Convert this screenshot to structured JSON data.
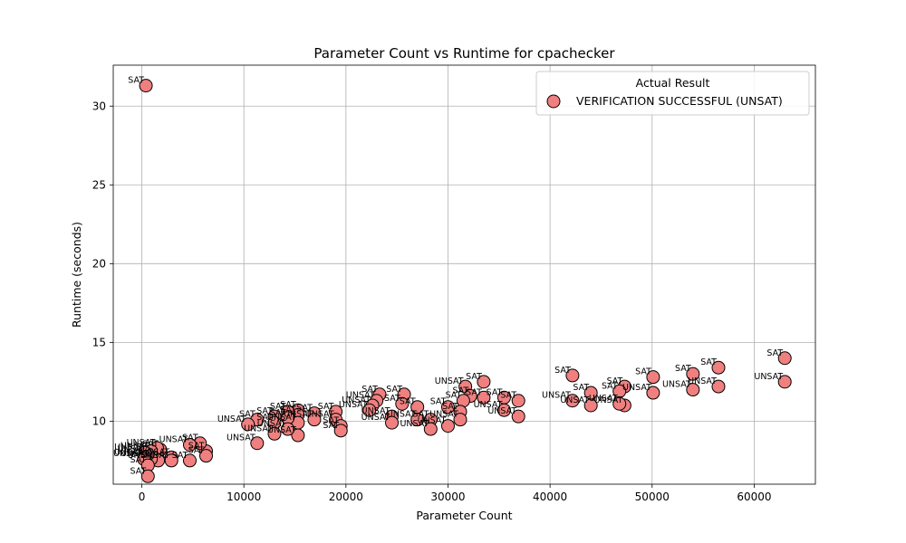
{
  "chart_data": {
    "type": "scatter",
    "title": "Parameter Count vs Runtime for cpachecker",
    "xlabel": "Parameter Count",
    "ylabel": "Runtime (seconds)",
    "xlim": [
      -2800,
      66000
    ],
    "ylim": [
      6.0,
      32.6
    ],
    "xticks": [
      0,
      10000,
      20000,
      30000,
      40000,
      50000,
      60000
    ],
    "yticks": [
      10,
      15,
      20,
      25,
      30
    ],
    "grid": true,
    "legend": {
      "title": "Actual Result",
      "placement": "top-right",
      "entries": [
        "VERIFICATION SUCCESSFUL (UNSAT)"
      ]
    },
    "marker_color": "#f08080",
    "series": [
      {
        "name": "VERIFICATION SUCCESSFUL (UNSAT)",
        "points": [
          {
            "x": 400,
            "y": 31.3,
            "label": "SAT"
          },
          {
            "x": 63000,
            "y": 14.0,
            "label": "SAT"
          },
          {
            "x": 63000,
            "y": 12.5,
            "label": "UNSAT"
          },
          {
            "x": 56500,
            "y": 13.4,
            "label": "SAT"
          },
          {
            "x": 56500,
            "y": 12.2,
            "label": "UNSAT"
          },
          {
            "x": 54000,
            "y": 13.0,
            "label": "SAT"
          },
          {
            "x": 54000,
            "y": 12.0,
            "label": "UNSAT"
          },
          {
            "x": 50100,
            "y": 12.8,
            "label": "SAT"
          },
          {
            "x": 50100,
            "y": 11.8,
            "label": "UNSAT"
          },
          {
            "x": 47300,
            "y": 12.2,
            "label": "SAT"
          },
          {
            "x": 46800,
            "y": 11.9,
            "label": "SAT"
          },
          {
            "x": 47300,
            "y": 11.0,
            "label": "UNSAT"
          },
          {
            "x": 46800,
            "y": 11.1,
            "label": "UNSAT"
          },
          {
            "x": 44000,
            "y": 11.8,
            "label": "SAT"
          },
          {
            "x": 44000,
            "y": 11.0,
            "label": "UNSAT"
          },
          {
            "x": 42200,
            "y": 12.9,
            "label": "SAT"
          },
          {
            "x": 42200,
            "y": 11.3,
            "label": "UNSAT"
          },
          {
            "x": 36900,
            "y": 11.3,
            "label": "SAT"
          },
          {
            "x": 36900,
            "y": 10.3,
            "label": "UNSAT"
          },
          {
            "x": 35500,
            "y": 11.5,
            "label": "SAT"
          },
          {
            "x": 35500,
            "y": 10.7,
            "label": "UNSAT"
          },
          {
            "x": 33500,
            "y": 12.5,
            "label": "SAT"
          },
          {
            "x": 33500,
            "y": 11.5,
            "label": "SAT"
          },
          {
            "x": 31700,
            "y": 12.2,
            "label": "UNSAT"
          },
          {
            "x": 32200,
            "y": 11.6,
            "label": "SAT"
          },
          {
            "x": 31500,
            "y": 11.3,
            "label": "SAT"
          },
          {
            "x": 31200,
            "y": 10.6,
            "label": "SAT"
          },
          {
            "x": 31200,
            "y": 10.1,
            "label": "UNSAT"
          },
          {
            "x": 30000,
            "y": 10.9,
            "label": "SAT"
          },
          {
            "x": 30000,
            "y": 9.7,
            "label": "UNSAT"
          },
          {
            "x": 28300,
            "y": 10.1,
            "label": "SAT"
          },
          {
            "x": 28300,
            "y": 9.5,
            "label": "UNSAT"
          },
          {
            "x": 27000,
            "y": 10.9,
            "label": "SAT"
          },
          {
            "x": 27000,
            "y": 10.1,
            "label": "UNSAT"
          },
          {
            "x": 25700,
            "y": 11.7,
            "label": "SAT"
          },
          {
            "x": 25500,
            "y": 11.1,
            "label": "SAT"
          },
          {
            "x": 24500,
            "y": 10.3,
            "label": "UNSAT"
          },
          {
            "x": 24500,
            "y": 9.9,
            "label": "UNSAT"
          },
          {
            "x": 23300,
            "y": 11.7,
            "label": "SAT"
          },
          {
            "x": 23000,
            "y": 11.3,
            "label": "UNSAT"
          },
          {
            "x": 22600,
            "y": 11.0,
            "label": "UNSAT"
          },
          {
            "x": 22300,
            "y": 10.7,
            "label": "UNSAT"
          },
          {
            "x": 19000,
            "y": 10.6,
            "label": "SAT"
          },
          {
            "x": 19000,
            "y": 10.1,
            "label": "UNSAT"
          },
          {
            "x": 19500,
            "y": 9.7,
            "label": "SAT"
          },
          {
            "x": 19500,
            "y": 9.4,
            "label": "SAT"
          },
          {
            "x": 16900,
            "y": 10.5,
            "label": "SAT"
          },
          {
            "x": 16900,
            "y": 10.1,
            "label": "UNSAT"
          },
          {
            "x": 15300,
            "y": 10.7,
            "label": "SAT"
          },
          {
            "x": 15300,
            "y": 10.4,
            "label": "SAT"
          },
          {
            "x": 15300,
            "y": 9.9,
            "label": "UNSAT"
          },
          {
            "x": 15300,
            "y": 9.1,
            "label": "UNSAT"
          },
          {
            "x": 14300,
            "y": 10.6,
            "label": "SAT"
          },
          {
            "x": 14300,
            "y": 10.2,
            "label": "SAT"
          },
          {
            "x": 14300,
            "y": 9.5,
            "label": "UNSAT"
          },
          {
            "x": 13000,
            "y": 10.3,
            "label": "SAT"
          },
          {
            "x": 13000,
            "y": 9.9,
            "label": "SAT"
          },
          {
            "x": 13000,
            "y": 9.2,
            "label": "UNSAT"
          },
          {
            "x": 11300,
            "y": 10.1,
            "label": "SAT"
          },
          {
            "x": 10400,
            "y": 9.8,
            "label": "UNSAT"
          },
          {
            "x": 11300,
            "y": 8.6,
            "label": "UNSAT"
          },
          {
            "x": 6300,
            "y": 8.1,
            "label": "SAT"
          },
          {
            "x": 6300,
            "y": 7.8,
            "label": "SAT"
          },
          {
            "x": 5700,
            "y": 8.6,
            "label": "SAT"
          },
          {
            "x": 4700,
            "y": 8.5,
            "label": "UNSAT"
          },
          {
            "x": 4700,
            "y": 7.5,
            "label": "SAT"
          },
          {
            "x": 2900,
            "y": 7.7,
            "label": "UNSAT"
          },
          {
            "x": 2900,
            "y": 7.5,
            "label": "UNSAT"
          },
          {
            "x": 1800,
            "y": 8.2,
            "label": "SAT"
          },
          {
            "x": 1600,
            "y": 7.5,
            "label": "UNSAT"
          },
          {
            "x": 1500,
            "y": 8.3,
            "label": "UNSAT"
          },
          {
            "x": 900,
            "y": 8.1,
            "label": "UNSAT"
          },
          {
            "x": 900,
            "y": 7.6,
            "label": "UNSAT"
          },
          {
            "x": 600,
            "y": 7.9,
            "label": "UNSAT"
          },
          {
            "x": 300,
            "y": 8.0,
            "label": "UNSAT"
          },
          {
            "x": 300,
            "y": 7.7,
            "label": "UNSAT"
          },
          {
            "x": 200,
            "y": 7.6,
            "label": "UNSAT"
          },
          {
            "x": 600,
            "y": 7.2,
            "label": "SAT"
          },
          {
            "x": 600,
            "y": 6.5,
            "label": "SAT"
          }
        ]
      }
    ]
  }
}
